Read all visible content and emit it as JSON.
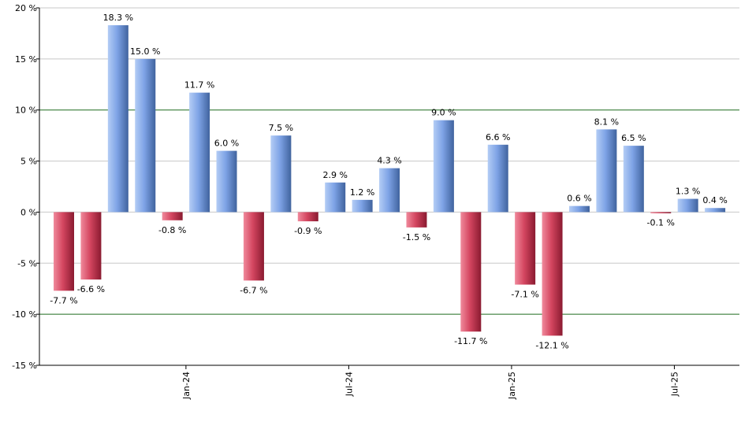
{
  "chart_data": {
    "type": "bar",
    "values": [
      -7.7,
      -6.6,
      18.3,
      15.0,
      -0.8,
      11.7,
      6.0,
      -6.7,
      7.5,
      -0.9,
      2.9,
      1.2,
      4.3,
      -1.5,
      9.0,
      -11.7,
      6.6,
      -7.1,
      -12.1,
      0.6,
      8.1,
      6.5,
      -0.1,
      1.3,
      0.4
    ],
    "labels": [
      "-7.7 %",
      "-6.6 %",
      "18.3 %",
      "15.0 %",
      "-0.8 %",
      "11.7 %",
      "6.0 %",
      "-6.7 %",
      "7.5 %",
      "-0.9 %",
      "2.9 %",
      "1.2 %",
      "4.3 %",
      "-1.5 %",
      "9.0 %",
      "-11.7 %",
      "6.6 %",
      "-7.1 %",
      "-12.1 %",
      "0.6 %",
      "8.1 %",
      "6.5 %",
      "-0.1 %",
      "1.3 %",
      "0.4 %"
    ],
    "x_ticks": [
      {
        "label": "Jan-24",
        "bar_index": 4.5
      },
      {
        "label": "Jul-24",
        "bar_index": 10.5
      },
      {
        "label": "Jan-25",
        "bar_index": 16.5
      },
      {
        "label": "Jul-25",
        "bar_index": 22.5
      }
    ],
    "y_ticks": [
      {
        "value": 20,
        "label": "20 %"
      },
      {
        "value": 15,
        "label": "15 %"
      },
      {
        "value": 10,
        "label": "10 %"
      },
      {
        "value": 5,
        "label": "5 %"
      },
      {
        "value": 0,
        "label": "0 %"
      },
      {
        "value": -5,
        "label": "-5 %"
      },
      {
        "value": -10,
        "label": "-10 %"
      },
      {
        "value": -15,
        "label": "-15 %"
      }
    ],
    "ylim": [
      -15,
      20
    ],
    "highlight_gridlines": [
      10,
      -10
    ],
    "grid": true,
    "colors": {
      "positive": "#6f95d8",
      "negative": "#c8344d",
      "gridline": "#c8c8c8",
      "highlight_gridline": "#1f6b1f"
    }
  }
}
